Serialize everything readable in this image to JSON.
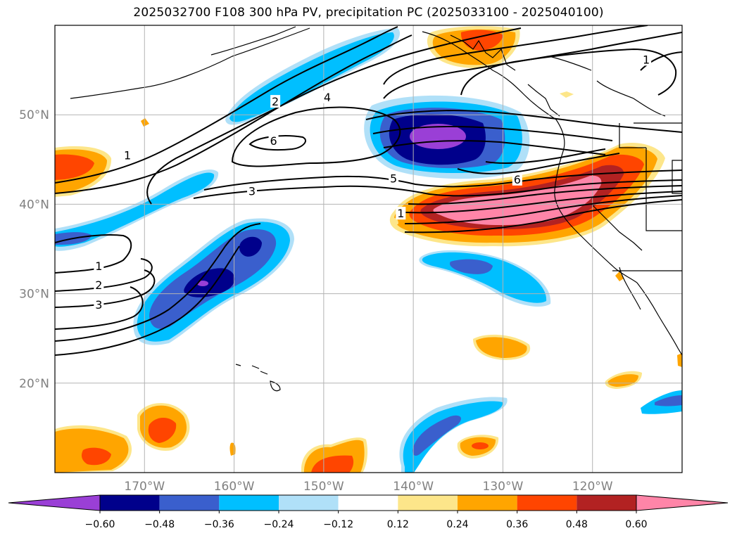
{
  "title": "2025032700 F108 300 hPa PV, precipitation PC (2025033100 - 2025040100)",
  "map": {
    "lon_range": [
      -180,
      -110
    ],
    "lat_range": [
      10,
      60
    ],
    "lat_ticks": [
      {
        "lat": 50,
        "label": "50°N"
      },
      {
        "lat": 40,
        "label": "40°N"
      },
      {
        "lat": 30,
        "label": "30°N"
      },
      {
        "lat": 20,
        "label": "20°N"
      }
    ],
    "lon_ticks": [
      {
        "lon": -170,
        "label": "170°W"
      },
      {
        "lon": -160,
        "label": "160°W"
      },
      {
        "lon": -150,
        "label": "150°W"
      },
      {
        "lon": -140,
        "label": "140°W"
      },
      {
        "lon": -130,
        "label": "130°W"
      },
      {
        "lon": -120,
        "label": "120°W"
      }
    ],
    "grid": true
  },
  "colorbar": {
    "levels": [
      "−0.60",
      "−0.48",
      "−0.36",
      "−0.24",
      "−0.12",
      "0.12",
      "0.24",
      "0.36",
      "0.48",
      "0.60"
    ],
    "colors": [
      "#9a3fd6",
      "#00008b",
      "#3a5fcd",
      "#00bfff",
      "#b0e0f8",
      "#ffffff",
      "#fde68a",
      "#ffa500",
      "#ff4500",
      "#b22222",
      "#ff85a8"
    ]
  },
  "contour_labels": [
    {
      "text": "1",
      "lon": -171.9,
      "lat": 45.5
    },
    {
      "text": "2",
      "lon": -155.4,
      "lat": 51.5
    },
    {
      "text": "4",
      "lon": -149.6,
      "lat": 52.0
    },
    {
      "text": "6",
      "lon": -155.6,
      "lat": 47.1
    },
    {
      "text": "3",
      "lon": -158.0,
      "lat": 41.5
    },
    {
      "text": "5",
      "lon": -142.2,
      "lat": 42.9
    },
    {
      "text": "6",
      "lon": -128.4,
      "lat": 42.8
    },
    {
      "text": "1",
      "lon": -141.4,
      "lat": 39.0
    },
    {
      "text": "1",
      "lon": -175.1,
      "lat": 33.1
    },
    {
      "text": "2",
      "lon": -175.1,
      "lat": 31.0
    },
    {
      "text": "3",
      "lon": -175.1,
      "lat": 28.8
    },
    {
      "text": "1",
      "lon": -114.0,
      "lat": 56.2
    }
  ],
  "colors": {
    "grid": "#b3b3b3",
    "axis_labels": "#808080",
    "contour": "#000000"
  }
}
